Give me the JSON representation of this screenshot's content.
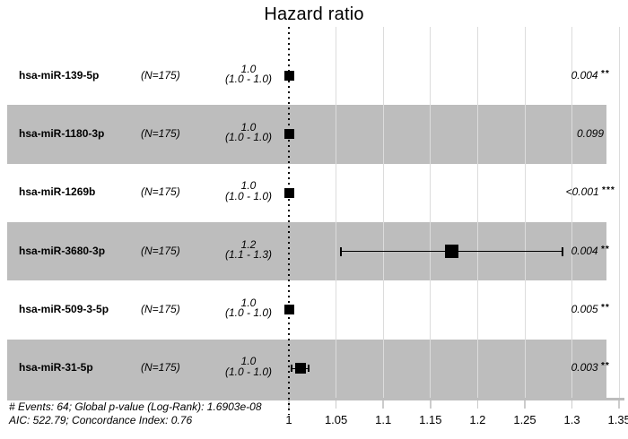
{
  "chart_data": {
    "type": "forest",
    "title": "Hazard ratio",
    "xlabel": "",
    "ylabel": "",
    "xlim": [
      1.0,
      1.37
    ],
    "x_tick_labels": [
      "1",
      "1.05",
      "1.1",
      "1.15",
      "1.2",
      "1.25",
      "1.3",
      "1.35"
    ],
    "x_tick_values": [
      1.0,
      1.05,
      1.1,
      1.15,
      1.2,
      1.25,
      1.3,
      1.35
    ],
    "reference_line": 1.0,
    "grid": "vertical-at-ticks",
    "legend_position": "none",
    "rows": [
      {
        "name": "hsa-miR-139-5p",
        "n": "(N=175)",
        "estimate": "1.0",
        "ci_label": "(1.0 - 1.0)",
        "hr": 1.0,
        "ci_low": 1.0,
        "ci_high": 1.0,
        "p": "0.004",
        "stars": "**",
        "shaded": false
      },
      {
        "name": "hsa-miR-1180-3p",
        "n": "(N=175)",
        "estimate": "1.0",
        "ci_label": "(1.0 - 1.0)",
        "hr": 1.0,
        "ci_low": 1.0,
        "ci_high": 1.0,
        "p": "0.099",
        "stars": "",
        "shaded": true
      },
      {
        "name": "hsa-miR-1269b",
        "n": "(N=175)",
        "estimate": "1.0",
        "ci_label": "(1.0 - 1.0)",
        "hr": 1.0,
        "ci_low": 1.0,
        "ci_high": 1.0,
        "p": "<0.001",
        "stars": "***",
        "shaded": false
      },
      {
        "name": "hsa-miR-3680-3p",
        "n": "(N=175)",
        "estimate": "1.2",
        "ci_label": "(1.1 - 1.3)",
        "hr": 1.173,
        "ci_low": 1.055,
        "ci_high": 1.29,
        "p": "0.004",
        "stars": "**",
        "shaded": true
      },
      {
        "name": "hsa-miR-509-3-5p",
        "n": "(N=175)",
        "estimate": "1.0",
        "ci_label": "(1.0 - 1.0)",
        "hr": 1.0,
        "ci_low": 1.0,
        "ci_high": 1.0,
        "p": "0.005",
        "stars": "**",
        "shaded": false
      },
      {
        "name": "hsa-miR-31-5p",
        "n": "(N=175)",
        "estimate": "1.0",
        "ci_label": "(1.0 - 1.0)",
        "hr": 1.012,
        "ci_low": 1.003,
        "ci_high": 1.021,
        "p": "0.003",
        "stars": "**",
        "shaded": true
      }
    ],
    "footnote_line1": "# Events: 64; Global p-value (Log-Rank): 1.6903e-08",
    "footnote_line2": "AIC: 522.79; Concordance Index: 0.76"
  },
  "colors": {
    "background": "#ffffff",
    "band": "#bdbdbd",
    "gridline": "#dcdcdc",
    "axis_line": "#bdbdbd",
    "tick_stub": "#cccccc",
    "marker": "#000000",
    "text": "#000000"
  }
}
